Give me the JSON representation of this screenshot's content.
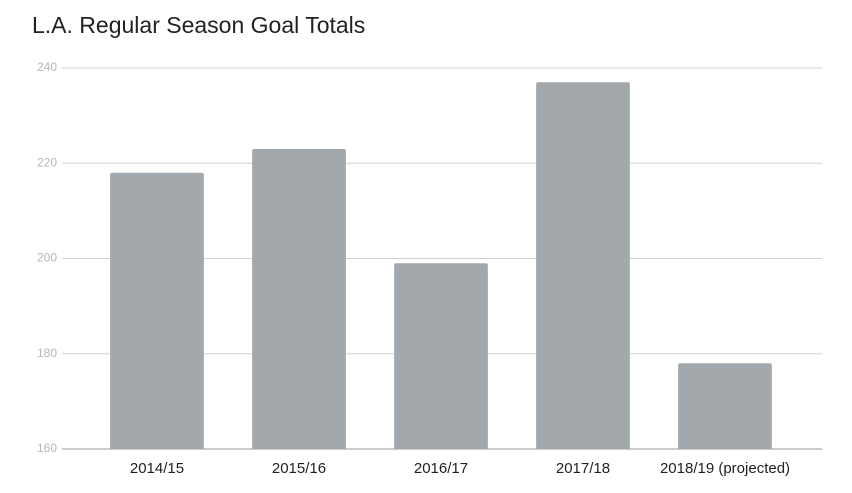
{
  "chart_data": {
    "type": "bar",
    "title": "L.A. Regular Season Goal Totals",
    "categories": [
      "2014/15",
      "2015/16",
      "2016/17",
      "2017/18",
      "2018/19 (projected)"
    ],
    "values": [
      218,
      223,
      199,
      237,
      178
    ],
    "color": "#a2a8ab",
    "ylim": [
      160,
      240
    ],
    "yticks": [
      160,
      180,
      200,
      220,
      240
    ],
    "grid": true
  }
}
